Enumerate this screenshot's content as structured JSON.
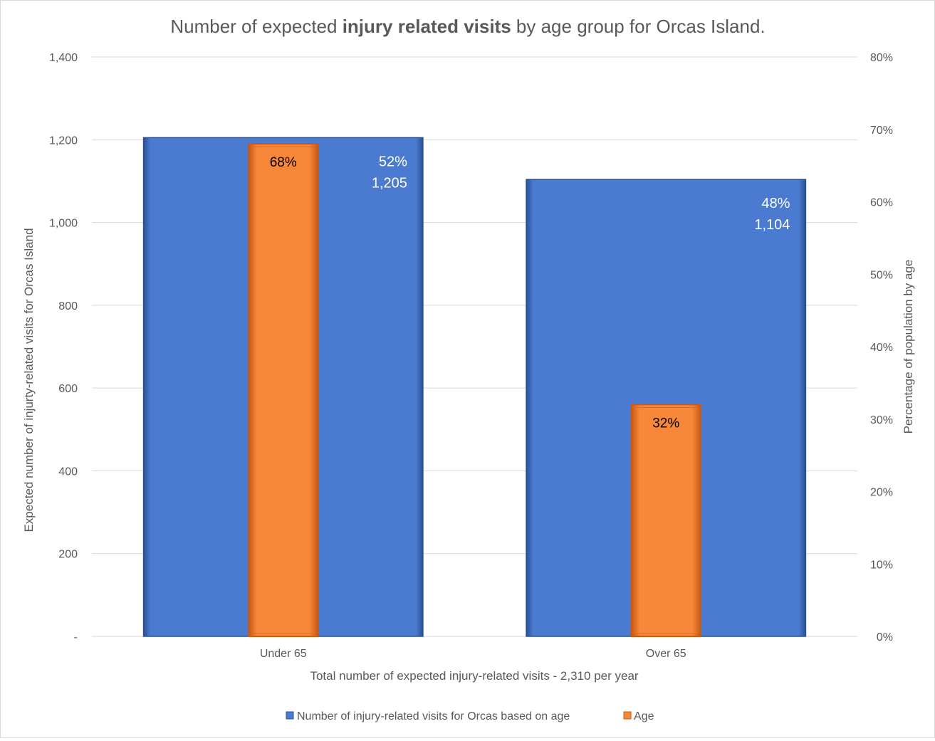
{
  "chart_data": {
    "type": "bar",
    "title": {
      "prefix": "Number of expected ",
      "bold": "injury related visits",
      "suffix": " by age group for Orcas Island."
    },
    "categories": [
      "Under 65",
      "Over 65"
    ],
    "series": [
      {
        "name": "Number of injury-related visits for Orcas based on age",
        "axis": "primary",
        "values": [
          1205,
          1104
        ],
        "value_labels": [
          "1,205",
          "1,104"
        ],
        "share_labels": [
          "52%",
          "48%"
        ],
        "color": "#4a7bd0"
      },
      {
        "name": "Age",
        "axis": "secondary",
        "values": [
          0.68,
          0.32
        ],
        "value_labels": [
          "68%",
          "32%"
        ],
        "color": "#f7883a"
      }
    ],
    "xlabel": "Total number of expected injury-related visits - 2,310 per year",
    "ylabel": "Expected number of injurty-related visits for Orcas Island",
    "y2label": "Percentage of population by age",
    "ylim": [
      0,
      1400
    ],
    "y2lim": [
      0,
      0.8
    ],
    "yticks": [
      "-",
      "200",
      "400",
      "600",
      "800",
      "1,000",
      "1,200",
      "1,400"
    ],
    "y2ticks": [
      "0%",
      "10%",
      "20%",
      "30%",
      "40%",
      "50%",
      "60%",
      "70%",
      "80%"
    ],
    "grid": true,
    "legend_position": "bottom"
  }
}
